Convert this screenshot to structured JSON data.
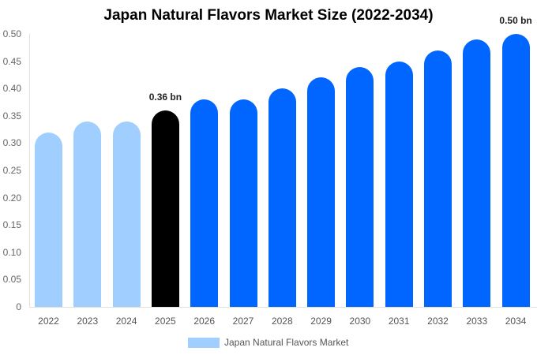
{
  "chart_data": {
    "type": "bar",
    "title": "Japan Natural Flavors Market Size (2022-2034)",
    "xlabel": "",
    "ylabel": "",
    "categories": [
      "2022",
      "2023",
      "2024",
      "2025",
      "2026",
      "2027",
      "2028",
      "2029",
      "2030",
      "2031",
      "2032",
      "2033",
      "2034"
    ],
    "series": [
      {
        "name": "Japan Natural Flavors Market",
        "values": [
          0.32,
          0.34,
          0.34,
          0.36,
          0.38,
          0.38,
          0.4,
          0.42,
          0.44,
          0.45,
          0.47,
          0.49,
          0.5
        ]
      }
    ],
    "bar_colors": [
      "#a0cfff",
      "#a0cfff",
      "#a0cfff",
      "#000000",
      "#0066ff",
      "#0066ff",
      "#0066ff",
      "#0066ff",
      "#0066ff",
      "#0066ff",
      "#0066ff",
      "#0066ff",
      "#0066ff"
    ],
    "annotations": [
      {
        "category": "2025",
        "text": "0.36 bn"
      },
      {
        "category": "2034",
        "text": "0.50 bn"
      }
    ],
    "ylim": [
      0,
      0.5
    ],
    "yticks": [
      "0",
      "0.05",
      "0.10",
      "0.15",
      "0.20",
      "0.25",
      "0.30",
      "0.35",
      "0.40",
      "0.45",
      "0.50"
    ],
    "grid": false,
    "legend_position": "bottom"
  },
  "legend": {
    "label": "Japan Natural Flavors Market",
    "color": "#a0cfff"
  }
}
